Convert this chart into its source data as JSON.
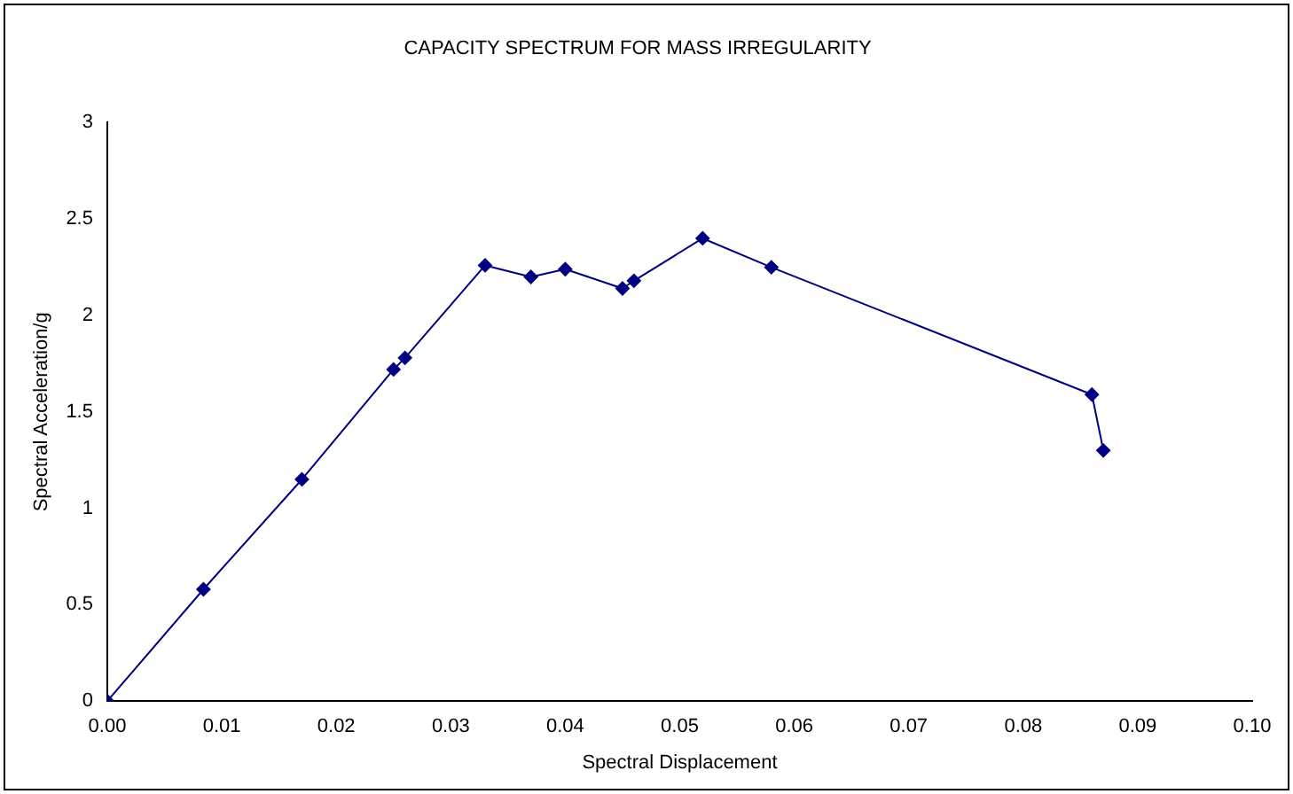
{
  "chart_data": {
    "type": "line",
    "title": "CAPACITY SPECTRUM FOR MASS IRREGULARITY",
    "xlabel": "Spectral Displacement",
    "ylabel": "Spectral Acceleration/g",
    "x": [
      0,
      0.0084,
      0.017,
      0.025,
      0.026,
      0.033,
      0.037,
      0.04,
      0.045,
      0.046,
      0.052,
      0.058,
      0.086,
      0.087
    ],
    "series": [
      {
        "color": "#000080",
        "values": [
          0,
          0.58,
          1.15,
          1.72,
          1.78,
          2.26,
          2.2,
          2.24,
          2.14,
          2.18,
          2.4,
          2.25,
          1.59,
          1.3
        ]
      }
    ],
    "xlim": [
      0,
      0.1
    ],
    "xticks": [
      {
        "value": 0,
        "label": "0.00"
      },
      {
        "value": 0.01,
        "label": "0.01"
      },
      {
        "value": 0.02,
        "label": "0.02"
      },
      {
        "value": 0.03,
        "label": "0.03"
      },
      {
        "value": 0.04,
        "label": "0.04"
      },
      {
        "value": 0.05,
        "label": "0.05"
      },
      {
        "value": 0.06,
        "label": "0.06"
      },
      {
        "value": 0.07,
        "label": "0.07"
      },
      {
        "value": 0.08,
        "label": "0.08"
      },
      {
        "value": 0.09,
        "label": "0.09"
      },
      {
        "value": 0.1,
        "label": "0.10"
      }
    ],
    "ylim": [
      0,
      3
    ],
    "yticks": [
      0,
      0.5,
      1,
      1.5,
      2,
      2.5,
      3
    ],
    "grid": false,
    "legend": false,
    "marker": "diamond",
    "line_style": "solid"
  }
}
